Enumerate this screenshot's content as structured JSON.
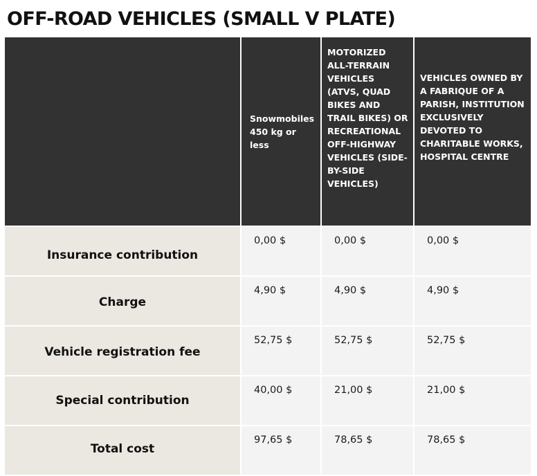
{
  "page": {
    "title": "OFF-ROAD VEHICLES (SMALL V PLATE)"
  },
  "table": {
    "header": {
      "blank": "",
      "columns": [
        "Snowmobiles 450 kg or less",
        "MOTORIZED ALL-TERRAIN VEHICLES (ATVS, QUAD BIKES AND TRAIL BIKES) OR RECREATIONAL OFF-HIGHWAY VEHICLES (SIDE-BY-SIDE VEHICLES)",
        "VEHICLES OWNED BY A FABRIQUE OF A PARISH, INSTITUTION EXCLUSIVELY DEVOTED TO CHARITABLE WORKS, HOSPITAL CENTRE"
      ]
    },
    "rows": [
      {
        "label": "Insurance contribution",
        "values": [
          "0,00 $",
          "0,00 $",
          "0,00 $"
        ]
      },
      {
        "label": "Charge",
        "values": [
          "4,90 $",
          "4,90 $",
          "4,90 $"
        ]
      },
      {
        "label": "Vehicle registration fee",
        "values": [
          "52,75 $",
          "52,75 $",
          "52,75 $"
        ]
      },
      {
        "label": "Special contribution",
        "values": [
          "40,00 $",
          "21,00 $",
          "21,00 $"
        ]
      },
      {
        "label": "Total cost",
        "values": [
          "97,65 $",
          "78,65 $",
          "78,65 $"
        ]
      }
    ]
  },
  "colors": {
    "header_bg": "#323232",
    "label_bg": "#ebe8e2",
    "value_bg": "#f3f3f3"
  }
}
